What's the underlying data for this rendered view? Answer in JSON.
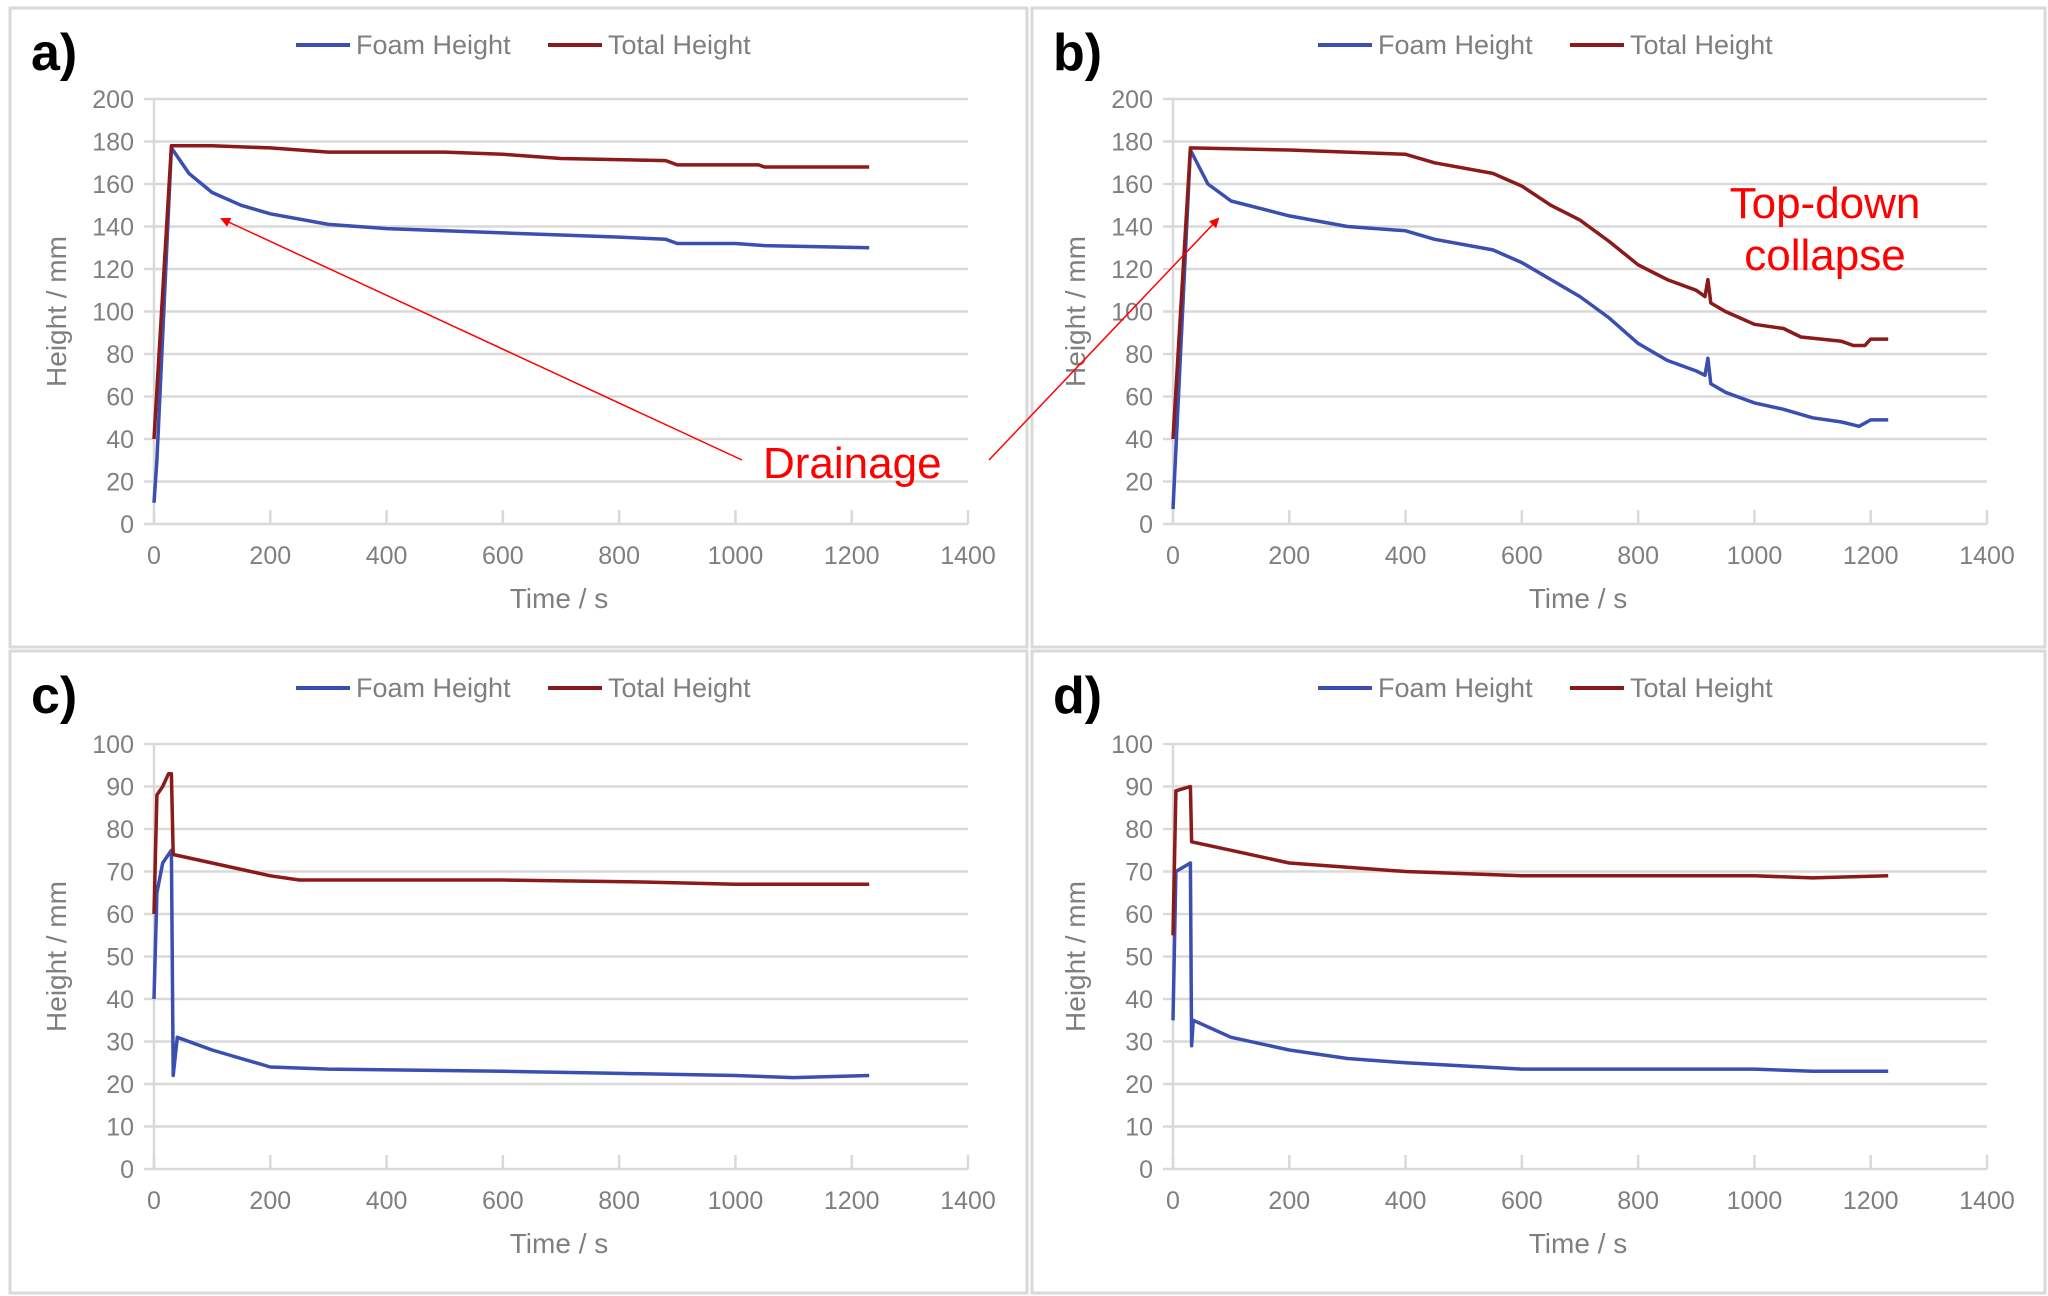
{
  "colors": {
    "foam": "#3a4fb0",
    "total": "#8b1a1a",
    "annotation": "#ff0000",
    "grid": "#d9d9d9",
    "text": "#7f7f7f"
  },
  "chart_data": [
    {
      "panel_label": "a)",
      "type": "line",
      "xlabel": "Time  / s",
      "ylabel": "Height / mm",
      "xlim": [
        0,
        1400
      ],
      "ylim": [
        0,
        200
      ],
      "xticks": [
        0,
        200,
        400,
        600,
        800,
        1000,
        1200,
        1400
      ],
      "yticks": [
        0,
        20,
        40,
        60,
        80,
        100,
        120,
        140,
        160,
        180,
        200
      ],
      "grid": "horizontal",
      "legend": "top",
      "series": [
        {
          "name": "Foam Height",
          "color": "#3a4fb0",
          "points": [
            [
              0,
              10
            ],
            [
              5,
              30
            ],
            [
              30,
              177
            ],
            [
              60,
              165
            ],
            [
              100,
              156
            ],
            [
              150,
              150
            ],
            [
              200,
              146
            ],
            [
              300,
              141
            ],
            [
              400,
              139
            ],
            [
              500,
              138
            ],
            [
              600,
              137
            ],
            [
              700,
              136
            ],
            [
              800,
              135
            ],
            [
              880,
              134
            ],
            [
              900,
              132
            ],
            [
              1000,
              132
            ],
            [
              1050,
              131
            ],
            [
              1230,
              130
            ]
          ]
        },
        {
          "name": "Total Height",
          "color": "#8b1a1a",
          "points": [
            [
              0,
              40
            ],
            [
              30,
              178
            ],
            [
              100,
              178
            ],
            [
              200,
              177
            ],
            [
              300,
              175
            ],
            [
              500,
              175
            ],
            [
              600,
              174
            ],
            [
              700,
              172
            ],
            [
              880,
              171
            ],
            [
              900,
              169
            ],
            [
              1040,
              169
            ],
            [
              1050,
              168
            ],
            [
              1230,
              168
            ]
          ]
        }
      ],
      "annotations": [
        {
          "text": "Drainage"
        }
      ]
    },
    {
      "panel_label": "b)",
      "type": "line",
      "xlabel": "Time  / s",
      "ylabel": "Height / mm",
      "xlim": [
        0,
        1400
      ],
      "ylim": [
        0,
        200
      ],
      "xticks": [
        0,
        200,
        400,
        600,
        800,
        1000,
        1200,
        1400
      ],
      "yticks": [
        0,
        20,
        40,
        60,
        80,
        100,
        120,
        140,
        160,
        180,
        200
      ],
      "grid": "horizontal",
      "legend": "top",
      "series": [
        {
          "name": "Foam Height",
          "color": "#3a4fb0",
          "points": [
            [
              0,
              7
            ],
            [
              30,
              176
            ],
            [
              60,
              160
            ],
            [
              100,
              152
            ],
            [
              200,
              145
            ],
            [
              300,
              140
            ],
            [
              400,
              138
            ],
            [
              450,
              134
            ],
            [
              550,
              129
            ],
            [
              600,
              123
            ],
            [
              650,
              115
            ],
            [
              700,
              107
            ],
            [
              750,
              97
            ],
            [
              800,
              85
            ],
            [
              850,
              77
            ],
            [
              900,
              72
            ],
            [
              915,
              70
            ],
            [
              920,
              78
            ],
            [
              925,
              66
            ],
            [
              950,
              62
            ],
            [
              1000,
              57
            ],
            [
              1050,
              54
            ],
            [
              1100,
              50
            ],
            [
              1150,
              48
            ],
            [
              1180,
              46
            ],
            [
              1200,
              49
            ],
            [
              1230,
              49
            ]
          ]
        },
        {
          "name": "Total Height",
          "color": "#8b1a1a",
          "points": [
            [
              0,
              40
            ],
            [
              30,
              177
            ],
            [
              200,
              176
            ],
            [
              400,
              174
            ],
            [
              450,
              170
            ],
            [
              550,
              165
            ],
            [
              600,
              159
            ],
            [
              650,
              150
            ],
            [
              700,
              143
            ],
            [
              750,
              133
            ],
            [
              800,
              122
            ],
            [
              850,
              115
            ],
            [
              900,
              110
            ],
            [
              915,
              107
            ],
            [
              920,
              115
            ],
            [
              925,
              104
            ],
            [
              950,
              100
            ],
            [
              1000,
              94
            ],
            [
              1050,
              92
            ],
            [
              1080,
              88
            ],
            [
              1150,
              86
            ],
            [
              1170,
              84
            ],
            [
              1190,
              84
            ],
            [
              1200,
              87
            ],
            [
              1230,
              87
            ]
          ]
        }
      ],
      "annotations": [
        {
          "text": "Top-down"
        },
        {
          "text": "collapse"
        }
      ]
    },
    {
      "panel_label": "c)",
      "type": "line",
      "xlabel": "Time  / s",
      "ylabel": "Height / mm",
      "xlim": [
        0,
        1400
      ],
      "ylim": [
        0,
        100
      ],
      "xticks": [
        0,
        200,
        400,
        600,
        800,
        1000,
        1200,
        1400
      ],
      "yticks": [
        0,
        10,
        20,
        30,
        40,
        50,
        60,
        70,
        80,
        90,
        100
      ],
      "grid": "horizontal",
      "legend": "top",
      "series": [
        {
          "name": "Foam Height",
          "color": "#3a4fb0",
          "points": [
            [
              0,
              40
            ],
            [
              5,
              65
            ],
            [
              15,
              72
            ],
            [
              30,
              75
            ],
            [
              33,
              22
            ],
            [
              40,
              31
            ],
            [
              100,
              28
            ],
            [
              200,
              24
            ],
            [
              300,
              23.5
            ],
            [
              600,
              23
            ],
            [
              800,
              22.5
            ],
            [
              1000,
              22
            ],
            [
              1100,
              21.5
            ],
            [
              1230,
              22
            ]
          ]
        },
        {
          "name": "Total Height",
          "color": "#8b1a1a",
          "points": [
            [
              0,
              60
            ],
            [
              5,
              88
            ],
            [
              15,
              90
            ],
            [
              25,
              93
            ],
            [
              30,
              93
            ],
            [
              33,
              74
            ],
            [
              100,
              72
            ],
            [
              200,
              69
            ],
            [
              250,
              68
            ],
            [
              600,
              68
            ],
            [
              850,
              67.5
            ],
            [
              1000,
              67
            ],
            [
              1230,
              67
            ]
          ]
        }
      ]
    },
    {
      "panel_label": "d)",
      "type": "line",
      "xlabel": "Time  / s",
      "ylabel": "Height / mm",
      "xlim": [
        0,
        1400
      ],
      "ylim": [
        0,
        100
      ],
      "xticks": [
        0,
        200,
        400,
        600,
        800,
        1000,
        1200,
        1400
      ],
      "yticks": [
        0,
        10,
        20,
        30,
        40,
        50,
        60,
        70,
        80,
        90,
        100
      ],
      "grid": "horizontal",
      "legend": "top",
      "series": [
        {
          "name": "Foam Height",
          "color": "#3a4fb0",
          "points": [
            [
              0,
              35
            ],
            [
              5,
              70
            ],
            [
              30,
              72
            ],
            [
              32,
              29
            ],
            [
              35,
              35
            ],
            [
              100,
              31
            ],
            [
              200,
              28
            ],
            [
              300,
              26
            ],
            [
              400,
              25
            ],
            [
              600,
              23.5
            ],
            [
              1000,
              23.5
            ],
            [
              1100,
              23
            ],
            [
              1230,
              23
            ]
          ]
        },
        {
          "name": "Total Height",
          "color": "#8b1a1a",
          "points": [
            [
              0,
              55
            ],
            [
              5,
              89
            ],
            [
              30,
              90
            ],
            [
              32,
              77
            ],
            [
              100,
              75
            ],
            [
              200,
              72
            ],
            [
              300,
              71
            ],
            [
              400,
              70
            ],
            [
              600,
              69
            ],
            [
              1000,
              69
            ],
            [
              1100,
              68.5
            ],
            [
              1230,
              69
            ]
          ]
        }
      ]
    }
  ]
}
